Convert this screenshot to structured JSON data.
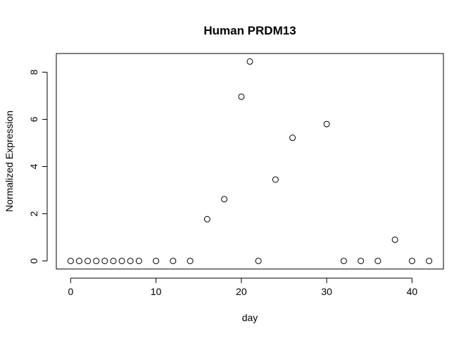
{
  "chart_data": {
    "type": "scatter",
    "title": "Human PRDM13",
    "xlabel": "day",
    "ylabel": "Normalized Expression",
    "xlim": [
      -1.68,
      43.68
    ],
    "ylim": [
      -0.34,
      8.79
    ],
    "x_ticks": [
      0,
      10,
      20,
      30,
      40
    ],
    "y_ticks": [
      0,
      2,
      4,
      6,
      8
    ],
    "x_tick_labels": [
      "0",
      "10",
      "20",
      "30",
      "40"
    ],
    "y_tick_labels": [
      "0",
      "2",
      "4",
      "6",
      "8"
    ],
    "grid": false,
    "legend": "none",
    "marker": "open-circle",
    "points": [
      {
        "x": 0,
        "y": 0
      },
      {
        "x": 1,
        "y": 0
      },
      {
        "x": 2,
        "y": 0
      },
      {
        "x": 3,
        "y": 0
      },
      {
        "x": 4,
        "y": 0
      },
      {
        "x": 5,
        "y": 0
      },
      {
        "x": 6,
        "y": 0
      },
      {
        "x": 7,
        "y": 0
      },
      {
        "x": 8,
        "y": 0
      },
      {
        "x": 10,
        "y": 0
      },
      {
        "x": 12,
        "y": 0
      },
      {
        "x": 14,
        "y": 0
      },
      {
        "x": 16,
        "y": 1.77
      },
      {
        "x": 18,
        "y": 2.62
      },
      {
        "x": 20,
        "y": 6.96
      },
      {
        "x": 21,
        "y": 8.45
      },
      {
        "x": 22,
        "y": 0
      },
      {
        "x": 24,
        "y": 3.45
      },
      {
        "x": 26,
        "y": 5.22
      },
      {
        "x": 30,
        "y": 5.8
      },
      {
        "x": 32,
        "y": 0
      },
      {
        "x": 34,
        "y": 0
      },
      {
        "x": 36,
        "y": 0
      },
      {
        "x": 38,
        "y": 0.9
      },
      {
        "x": 40,
        "y": 0
      },
      {
        "x": 42,
        "y": 0
      }
    ]
  }
}
